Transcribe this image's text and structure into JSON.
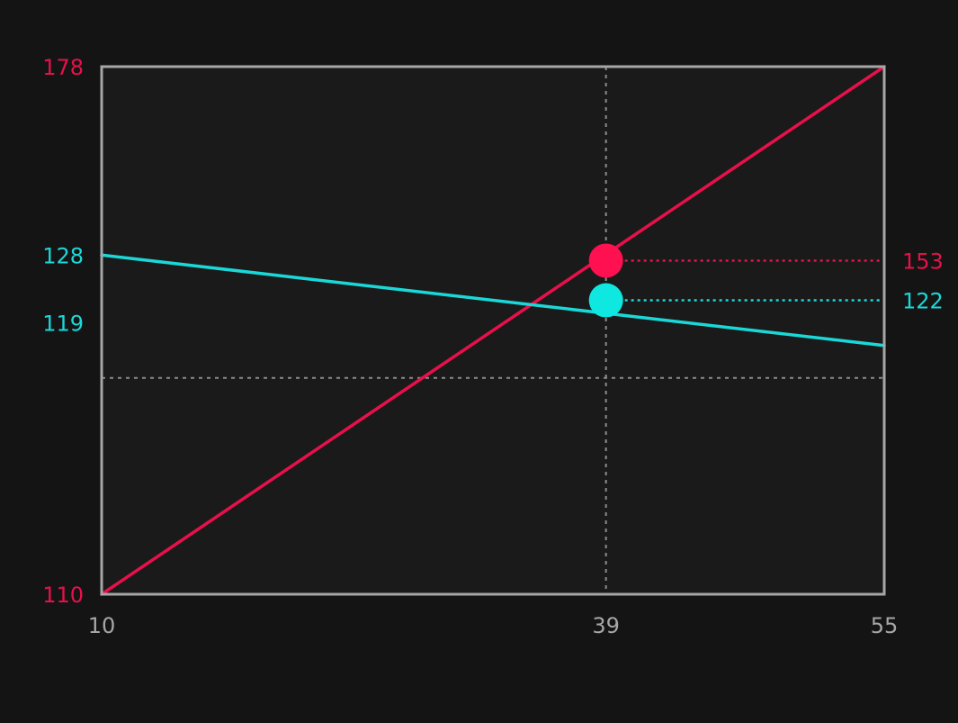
{
  "colors": {
    "background": "#141414",
    "plot_background": "#1a1a1a",
    "frame": "#a6a6a6",
    "grid": "#8c8c8c",
    "axis_text": "#a6a6a6"
  },
  "chart_data": {
    "type": "line",
    "title": "",
    "xlabel": "",
    "ylabel": "",
    "x_ticks": [
      "10",
      "39",
      "55"
    ],
    "xlim": [
      10,
      55
    ],
    "crosshair": {
      "x": 39,
      "x_label": "39"
    },
    "horizontal_gridline": {
      "fraction_from_bottom": 0.41
    },
    "series": [
      {
        "axis": "left",
        "color": "#e8104a",
        "marker_color": "#ff1050",
        "x": [
          10,
          55
        ],
        "y": [
          110,
          178
        ],
        "ylim": [
          110,
          178
        ],
        "tick_labels": [
          "110",
          "178"
        ],
        "highlight": {
          "x": 39,
          "y": 153,
          "label": "153"
        }
      },
      {
        "axis": "left",
        "color": "#1bd8d8",
        "marker_color": "#0fe8e0",
        "x": [
          10,
          55
        ],
        "y": [
          128,
          116
        ],
        "ylim": [
          83,
          153
        ],
        "tick_labels": [
          "119",
          "128"
        ],
        "highlight": {
          "x": 39,
          "y": 122,
          "label": "122"
        }
      }
    ]
  }
}
